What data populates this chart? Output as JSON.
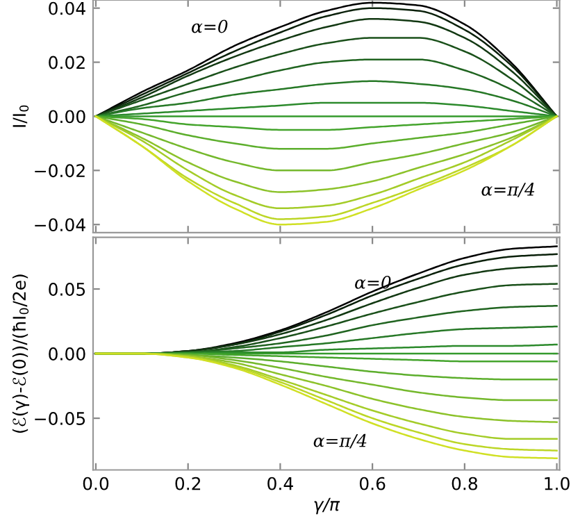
{
  "chart_data": [
    {
      "type": "line",
      "ylabel": "I/I$_{0}$",
      "x": [
        0,
        0.1,
        0.2,
        0.3,
        0.4,
        0.5,
        0.6,
        0.7,
        0.8,
        0.9,
        1.0
      ],
      "xlim": [
        -0.006,
        1.006
      ],
      "xticks": [
        0,
        0.2,
        0.4,
        0.6,
        0.8,
        1.0
      ],
      "ylim": [
        -0.043,
        0.043
      ],
      "yticks": [
        {
          "value": -0.04,
          "label": "−0.04"
        },
        {
          "value": -0.02,
          "label": "−0.02"
        },
        {
          "value": 0,
          "label": "0.00"
        },
        {
          "value": 0.02,
          "label": "0.02"
        },
        {
          "value": 0.04,
          "label": "0.04"
        }
      ],
      "tick_labels": "y",
      "grid": false,
      "legend": false,
      "marker": "none",
      "line_style": "solid",
      "annotations": [
        "α=0",
        "α=π/4"
      ],
      "series": [
        {
          "color": "#000000",
          "values": [
            0,
            0.009,
            0.017,
            0.026,
            0.033,
            0.039,
            0.042,
            0.041,
            0.034,
            0.02,
            0
          ]
        },
        {
          "color": "#0a200a",
          "values": [
            0,
            0.008,
            0.016,
            0.024,
            0.031,
            0.037,
            0.04,
            0.039,
            0.032,
            0.019,
            0
          ]
        },
        {
          "color": "#123812",
          "values": [
            0,
            0.007,
            0.015,
            0.022,
            0.028,
            0.033,
            0.036,
            0.035,
            0.029,
            0.017,
            0
          ]
        },
        {
          "color": "#1a501a",
          "values": [
            0,
            0.006,
            0.012,
            0.018,
            0.023,
            0.027,
            0.029,
            0.029,
            0.024,
            0.014,
            0
          ]
        },
        {
          "color": "#206420",
          "values": [
            0,
            0.004,
            0.009,
            0.013,
            0.017,
            0.02,
            0.021,
            0.021,
            0.017,
            0.01,
            0
          ]
        },
        {
          "color": "#267826",
          "values": [
            0,
            0.003,
            0.005,
            0.008,
            0.01,
            0.012,
            0.013,
            0.012,
            0.01,
            0.006,
            0
          ]
        },
        {
          "color": "#2c8a2c",
          "values": [
            0,
            0.001,
            0.002,
            0.003,
            0.004,
            0.005,
            0.005,
            0.005,
            0.004,
            0.002,
            0
          ]
        },
        {
          "color": "#349a2c",
          "values": [
            0,
            0,
            0,
            0,
            0,
            0,
            0,
            0,
            0,
            0,
            0
          ]
        },
        {
          "color": "#44a42c",
          "values": [
            0,
            -0.001,
            -0.003,
            -0.004,
            -0.005,
            -0.005,
            -0.004,
            -0.003,
            -0.002,
            -0.001,
            0
          ]
        },
        {
          "color": "#5cae2c",
          "values": [
            0,
            -0.003,
            -0.007,
            -0.01,
            -0.012,
            -0.012,
            -0.01,
            -0.008,
            -0.006,
            -0.003,
            0
          ]
        },
        {
          "color": "#74b82c",
          "values": [
            0,
            -0.006,
            -0.012,
            -0.017,
            -0.02,
            -0.02,
            -0.017,
            -0.014,
            -0.01,
            -0.006,
            0
          ]
        },
        {
          "color": "#8cc22a",
          "values": [
            0,
            -0.008,
            -0.017,
            -0.024,
            -0.028,
            -0.027,
            -0.024,
            -0.019,
            -0.014,
            -0.008,
            0
          ]
        },
        {
          "color": "#a4cc28",
          "values": [
            0,
            -0.009,
            -0.02,
            -0.029,
            -0.034,
            -0.033,
            -0.029,
            -0.023,
            -0.017,
            -0.009,
            0
          ]
        },
        {
          "color": "#bcd626",
          "values": [
            0,
            -0.011,
            -0.023,
            -0.032,
            -0.038,
            -0.037,
            -0.032,
            -0.026,
            -0.019,
            -0.011,
            0
          ]
        },
        {
          "color": "#d0e024",
          "values": [
            0,
            -0.011,
            -0.024,
            -0.034,
            -0.04,
            -0.039,
            -0.034,
            -0.027,
            -0.02,
            -0.011,
            0
          ]
        }
      ]
    },
    {
      "type": "line",
      "xlabel": "γ/π",
      "ylabel": "(ℰ(γ)-ℰ(0))/(ħI$_{0}$/2e)",
      "x": [
        0,
        0.1,
        0.2,
        0.3,
        0.4,
        0.5,
        0.6,
        0.7,
        0.8,
        0.9,
        1.0
      ],
      "xlim": [
        -0.006,
        1.006
      ],
      "xticks": [
        {
          "value": 0,
          "label": "0.0"
        },
        0.2,
        0.4,
        0.6,
        0.8,
        {
          "value": 1.0,
          "label": "1.0"
        }
      ],
      "ylim": [
        -0.09,
        0.09
      ],
      "yticks": [
        {
          "value": -0.05,
          "label": "−0.05"
        },
        {
          "value": 0,
          "label": "0.00"
        },
        0.05
      ],
      "grid": false,
      "legend": false,
      "marker": "none",
      "line_style": "solid",
      "annotations": [
        "α=0",
        "α=π/4"
      ],
      "series": [
        {
          "color": "#000000",
          "values": [
            0,
            0,
            0.002,
            0.008,
            0.018,
            0.032,
            0.048,
            0.062,
            0.074,
            0.081,
            0.083
          ]
        },
        {
          "color": "#0a200a",
          "values": [
            0,
            0,
            0.002,
            0.007,
            0.017,
            0.03,
            0.045,
            0.058,
            0.069,
            0.075,
            0.077
          ]
        },
        {
          "color": "#123812",
          "values": [
            0,
            0,
            0.002,
            0.007,
            0.015,
            0.026,
            0.039,
            0.051,
            0.061,
            0.066,
            0.068
          ]
        },
        {
          "color": "#1a501a",
          "values": [
            0,
            0,
            0.001,
            0.005,
            0.012,
            0.021,
            0.031,
            0.04,
            0.048,
            0.053,
            0.054
          ]
        },
        {
          "color": "#206420",
          "values": [
            0,
            0,
            0.001,
            0.004,
            0.008,
            0.014,
            0.022,
            0.028,
            0.033,
            0.036,
            0.037
          ]
        },
        {
          "color": "#267826",
          "values": [
            0,
            0,
            0.001,
            0.002,
            0.005,
            0.008,
            0.012,
            0.016,
            0.019,
            0.02,
            0.021
          ]
        },
        {
          "color": "#2c8a2c",
          "values": [
            0,
            0,
            0,
            0.001,
            0.001,
            0.003,
            0.004,
            0.005,
            0.006,
            0.006,
            0.007
          ]
        },
        {
          "color": "#349a2c",
          "values": [
            0,
            0,
            0,
            0,
            0,
            0,
            0,
            0,
            0,
            0,
            0
          ]
        },
        {
          "color": "#44a42c",
          "values": [
            0,
            0,
            0,
            -0.001,
            -0.002,
            -0.003,
            -0.004,
            -0.005,
            -0.006,
            -0.006,
            -0.006
          ]
        },
        {
          "color": "#5cae2c",
          "values": [
            0,
            0,
            -0.001,
            -0.003,
            -0.006,
            -0.01,
            -0.014,
            -0.017,
            -0.019,
            -0.02,
            -0.02
          ]
        },
        {
          "color": "#74b82c",
          "values": [
            0,
            0,
            -0.001,
            -0.005,
            -0.011,
            -0.018,
            -0.024,
            -0.03,
            -0.034,
            -0.036,
            -0.036
          ]
        },
        {
          "color": "#8cc22a",
          "values": [
            0,
            0,
            -0.002,
            -0.007,
            -0.016,
            -0.025,
            -0.035,
            -0.043,
            -0.049,
            -0.052,
            -0.053
          ]
        },
        {
          "color": "#a4cc28",
          "values": [
            0,
            0,
            -0.002,
            -0.009,
            -0.02,
            -0.032,
            -0.044,
            -0.054,
            -0.062,
            -0.066,
            -0.066
          ]
        },
        {
          "color": "#bcd626",
          "values": [
            0,
            0,
            -0.003,
            -0.01,
            -0.022,
            -0.036,
            -0.05,
            -0.061,
            -0.07,
            -0.074,
            -0.075
          ]
        },
        {
          "color": "#d0e024",
          "values": [
            0,
            0,
            -0.003,
            -0.011,
            -0.024,
            -0.039,
            -0.054,
            -0.066,
            -0.075,
            -0.08,
            -0.081
          ]
        }
      ]
    }
  ]
}
